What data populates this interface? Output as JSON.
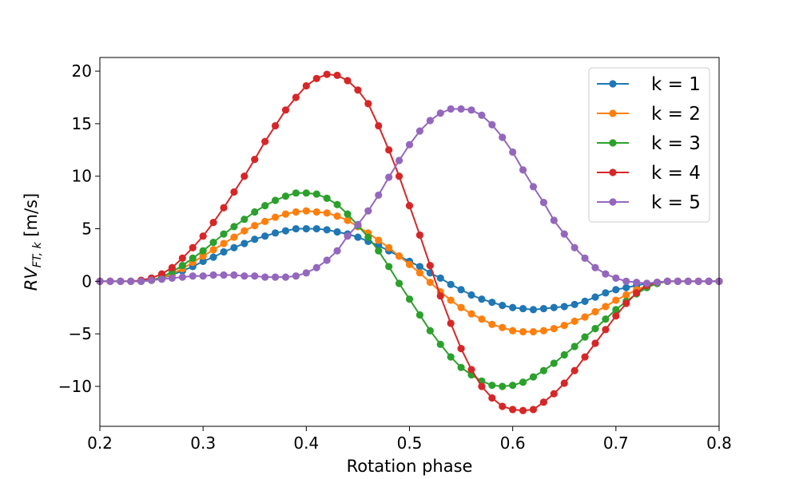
{
  "chart_data": {
    "type": "line",
    "title": "",
    "xlabel": "Rotation phase",
    "ylabel": "RV_{FT,k} [m/s]",
    "ylabel_main": "RV",
    "ylabel_sub": "FT, k",
    "ylabel_unit": " [m/s]",
    "xlim": [
      0.2,
      0.8
    ],
    "ylim": [
      -13.8,
      21.3
    ],
    "x_ticks": [
      "0.2",
      "0.3",
      "0.4",
      "0.5",
      "0.6",
      "0.7",
      "0.8"
    ],
    "y_ticks": [
      "−10",
      "−5",
      "0",
      "5",
      "10",
      "15",
      "20"
    ],
    "x_tick_values": [
      0.2,
      0.3,
      0.4,
      0.5,
      0.6,
      0.7,
      0.8
    ],
    "y_tick_values": [
      -10,
      -5,
      0,
      5,
      10,
      15,
      20
    ],
    "grid": false,
    "legend_position": "top-right",
    "x": [
      0.2,
      0.21,
      0.22,
      0.23,
      0.24,
      0.25,
      0.26,
      0.27,
      0.28,
      0.29,
      0.3,
      0.31,
      0.32,
      0.33,
      0.34,
      0.35,
      0.36,
      0.37,
      0.38,
      0.39,
      0.4,
      0.41,
      0.42,
      0.43,
      0.44,
      0.45,
      0.46,
      0.47,
      0.48,
      0.49,
      0.5,
      0.51,
      0.52,
      0.53,
      0.54,
      0.55,
      0.56,
      0.57,
      0.58,
      0.59,
      0.6,
      0.61,
      0.62,
      0.63,
      0.64,
      0.65,
      0.66,
      0.67,
      0.68,
      0.69,
      0.7,
      0.71,
      0.72,
      0.73,
      0.74,
      0.75,
      0.76,
      0.77,
      0.78,
      0.79,
      0.8
    ],
    "series": [
      {
        "name": "k = 1",
        "color": "#1f77b4",
        "values": [
          0,
          0,
          0,
          0,
          0,
          0.1,
          0.3,
          0.6,
          1.0,
          1.4,
          1.9,
          2.3,
          2.8,
          3.2,
          3.6,
          4.0,
          4.3,
          4.6,
          4.8,
          5.0,
          5.0,
          5.0,
          4.9,
          4.7,
          4.5,
          4.2,
          3.8,
          3.4,
          2.9,
          2.4,
          1.9,
          1.4,
          0.8,
          0.3,
          -0.3,
          -0.8,
          -1.3,
          -1.7,
          -2.0,
          -2.3,
          -2.5,
          -2.6,
          -2.7,
          -2.6,
          -2.5,
          -2.4,
          -2.2,
          -1.9,
          -1.5,
          -1.1,
          -0.8,
          -0.6,
          -0.4,
          -0.2,
          -0.1,
          0,
          0,
          0,
          0,
          0,
          0
        ]
      },
      {
        "name": "k = 2",
        "color": "#ff7f0e",
        "values": [
          0,
          0,
          0,
          0,
          0,
          0.1,
          0.3,
          0.7,
          1.2,
          1.8,
          2.4,
          3.0,
          3.6,
          4.2,
          4.8,
          5.3,
          5.7,
          6.1,
          6.4,
          6.6,
          6.7,
          6.6,
          6.5,
          6.2,
          5.8,
          5.2,
          4.6,
          3.9,
          3.2,
          2.4,
          1.6,
          0.8,
          -0.1,
          -1.0,
          -1.8,
          -2.5,
          -3.1,
          -3.6,
          -4.1,
          -4.4,
          -4.7,
          -4.8,
          -4.8,
          -4.7,
          -4.5,
          -4.2,
          -3.8,
          -3.4,
          -2.9,
          -2.4,
          -1.8,
          -1.3,
          -0.8,
          -0.4,
          -0.2,
          0,
          0,
          0,
          0,
          0,
          0
        ]
      },
      {
        "name": "k = 3",
        "color": "#2ca02c",
        "values": [
          0,
          0,
          0,
          0,
          0,
          0.1,
          0.4,
          0.9,
          1.5,
          2.2,
          2.9,
          3.7,
          4.5,
          5.2,
          5.9,
          6.6,
          7.2,
          7.7,
          8.1,
          8.4,
          8.4,
          8.3,
          7.9,
          7.3,
          6.4,
          5.3,
          4.2,
          2.9,
          1.4,
          -0.2,
          -1.7,
          -3.2,
          -4.7,
          -6.0,
          -7.2,
          -8.2,
          -8.9,
          -9.5,
          -9.9,
          -10.0,
          -9.9,
          -9.6,
          -9.1,
          -8.5,
          -7.8,
          -7.0,
          -6.2,
          -5.3,
          -4.5,
          -3.6,
          -2.7,
          -1.9,
          -1.2,
          -0.6,
          -0.2,
          0,
          0,
          0,
          0,
          0,
          0
        ]
      },
      {
        "name": "k = 4",
        "color": "#d62728",
        "values": [
          0,
          0,
          0,
          0,
          0.1,
          0.3,
          0.7,
          1.3,
          2.2,
          3.2,
          4.3,
          5.6,
          7.0,
          8.5,
          10.0,
          11.6,
          13.3,
          14.8,
          16.3,
          17.5,
          18.6,
          19.3,
          19.7,
          19.6,
          19.1,
          18.2,
          16.9,
          14.8,
          12.5,
          10.0,
          7.2,
          4.4,
          1.5,
          -1.4,
          -4.0,
          -6.4,
          -8.4,
          -10.0,
          -11.1,
          -11.9,
          -12.2,
          -12.3,
          -12.2,
          -11.5,
          -10.7,
          -9.7,
          -8.5,
          -7.2,
          -5.9,
          -4.6,
          -3.3,
          -2.1,
          -1.1,
          -0.4,
          -0.1,
          0,
          0,
          0,
          0,
          0,
          0
        ]
      },
      {
        "name": "k = 5",
        "color": "#9467bd",
        "values": [
          0,
          0,
          0,
          0,
          0,
          0.1,
          0.2,
          0.3,
          0.4,
          0.5,
          0.5,
          0.6,
          0.6,
          0.6,
          0.5,
          0.5,
          0.4,
          0.4,
          0.4,
          0.5,
          0.8,
          1.3,
          2.0,
          2.9,
          4.3,
          5.4,
          6.7,
          8.2,
          9.9,
          11.5,
          13.0,
          14.3,
          15.3,
          16.0,
          16.4,
          16.4,
          16.3,
          15.8,
          14.9,
          13.7,
          12.3,
          10.6,
          9.0,
          7.5,
          5.8,
          4.5,
          3.2,
          2.2,
          1.3,
          0.7,
          0.3,
          0,
          -0.1,
          -0.2,
          -0.1,
          0,
          0,
          0,
          0,
          0,
          0
        ]
      }
    ]
  }
}
